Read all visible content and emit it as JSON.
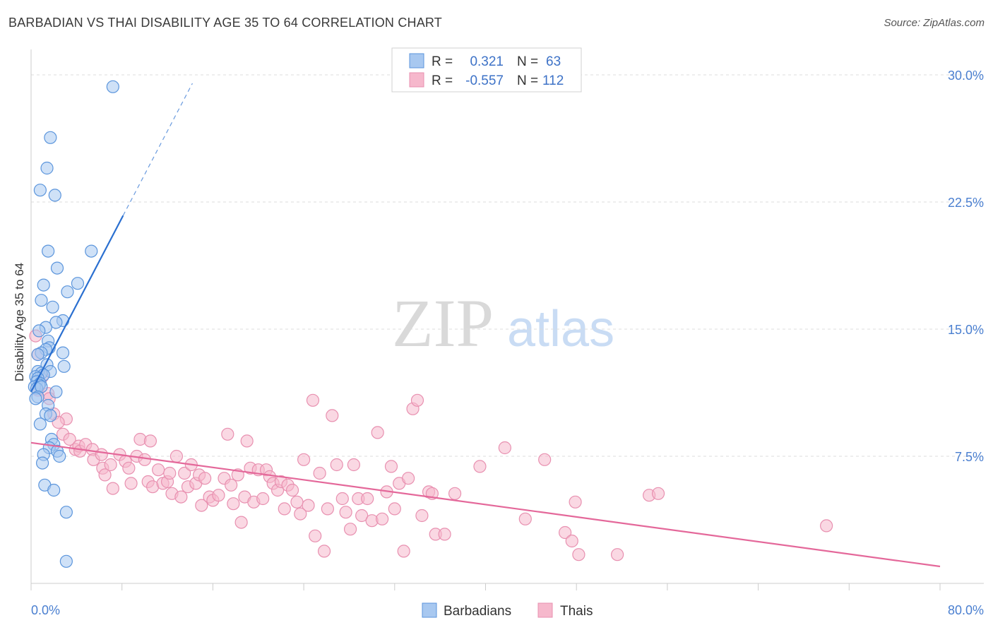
{
  "title": "BARBADIAN VS THAI DISABILITY AGE 35 TO 64 CORRELATION CHART",
  "source": "Source: ZipAtlas.com",
  "watermark": {
    "zip": "ZIP",
    "atlas": "atlas"
  },
  "colors": {
    "blue_fill": "#a8c8f0",
    "blue_stroke": "#5b95dc",
    "blue_line": "#2a6fd0",
    "pink_fill": "#f6b8cc",
    "pink_stroke": "#e890b0",
    "pink_line": "#e4689a",
    "tick_text": "#4a7fd0",
    "grid": "#dcdcdc"
  },
  "legend": {
    "r_label": "R =",
    "n_label": "N =",
    "rows": [
      {
        "series": "Barbadians",
        "r": "0.321",
        "n": "63"
      },
      {
        "series": "Thais",
        "r": "-0.557",
        "n": "112"
      }
    ]
  },
  "chart_data": {
    "type": "scatter",
    "title": "BARBADIAN VS THAI DISABILITY AGE 35 TO 64 CORRELATION CHART",
    "xlabel": "",
    "ylabel": "Disability Age 35 to 64",
    "xlim": [
      0,
      80
    ],
    "ylim": [
      0,
      31.5
    ],
    "x_tick_labels": [
      "0.0%",
      "80.0%"
    ],
    "y_ticks": [
      7.5,
      15.0,
      22.5,
      30.0
    ],
    "y_tick_labels": [
      "7.5%",
      "15.0%",
      "22.5%",
      "30.0%"
    ],
    "series": [
      {
        "name": "Barbadians",
        "r": 0.321,
        "n": 63,
        "trend": {
          "x0": 0,
          "y0": 11.3,
          "x1": 8.1,
          "y1": 21.7,
          "dash_to_x": 14.2,
          "dash_to_y": 29.5
        },
        "points": [
          [
            7.2,
            29.3
          ],
          [
            1.7,
            26.3
          ],
          [
            1.4,
            24.5
          ],
          [
            0.8,
            23.2
          ],
          [
            2.1,
            22.9
          ],
          [
            1.5,
            19.6
          ],
          [
            5.3,
            19.6
          ],
          [
            2.3,
            18.6
          ],
          [
            1.1,
            17.6
          ],
          [
            4.1,
            17.7
          ],
          [
            3.2,
            17.2
          ],
          [
            0.9,
            16.7
          ],
          [
            1.9,
            16.3
          ],
          [
            2.8,
            15.5
          ],
          [
            2.2,
            15.4
          ],
          [
            1.3,
            15.1
          ],
          [
            0.7,
            14.9
          ],
          [
            1.5,
            14.3
          ],
          [
            1.6,
            13.9
          ],
          [
            1.3,
            13.8
          ],
          [
            0.9,
            13.6
          ],
          [
            0.6,
            13.5
          ],
          [
            2.8,
            13.6
          ],
          [
            2.9,
            12.8
          ],
          [
            1.4,
            12.9
          ],
          [
            1.7,
            12.5
          ],
          [
            0.6,
            12.5
          ],
          [
            0.9,
            12.4
          ],
          [
            1.1,
            12.3
          ],
          [
            0.4,
            12.2
          ],
          [
            0.6,
            12.1
          ],
          [
            0.5,
            11.9
          ],
          [
            0.8,
            11.8
          ],
          [
            0.7,
            11.7
          ],
          [
            0.3,
            11.6
          ],
          [
            0.5,
            11.5
          ],
          [
            0.9,
            11.6
          ],
          [
            2.2,
            11.3
          ],
          [
            0.6,
            11.0
          ],
          [
            0.4,
            10.9
          ],
          [
            1.5,
            10.5
          ],
          [
            1.3,
            10.0
          ],
          [
            1.7,
            9.9
          ],
          [
            0.8,
            9.4
          ],
          [
            1.8,
            8.5
          ],
          [
            2.0,
            8.2
          ],
          [
            1.6,
            8.0
          ],
          [
            2.3,
            7.8
          ],
          [
            2.5,
            7.5
          ],
          [
            1.1,
            7.6
          ],
          [
            1.0,
            7.1
          ],
          [
            1.2,
            5.8
          ],
          [
            2.0,
            5.5
          ],
          [
            3.1,
            4.2
          ],
          [
            3.1,
            1.3
          ]
        ]
      },
      {
        "name": "Thais",
        "r": -0.557,
        "n": 112,
        "trend": {
          "x0": 0,
          "y0": 8.3,
          "x1": 80,
          "y1": 1.0
        },
        "points": [
          [
            0.4,
            14.6
          ],
          [
            0.6,
            13.5
          ],
          [
            1.0,
            12.2
          ],
          [
            0.6,
            11.4
          ],
          [
            1.5,
            11.2
          ],
          [
            1.6,
            10.9
          ],
          [
            2.0,
            10.0
          ],
          [
            3.1,
            9.7
          ],
          [
            2.4,
            9.5
          ],
          [
            2.8,
            8.8
          ],
          [
            3.4,
            8.5
          ],
          [
            3.9,
            7.9
          ],
          [
            4.2,
            8.1
          ],
          [
            4.3,
            7.8
          ],
          [
            4.8,
            8.2
          ],
          [
            5.4,
            7.9
          ],
          [
            5.5,
            7.3
          ],
          [
            6.2,
            7.6
          ],
          [
            6.3,
            6.8
          ],
          [
            6.5,
            6.4
          ],
          [
            7.0,
            7.0
          ],
          [
            7.2,
            5.6
          ],
          [
            7.8,
            7.6
          ],
          [
            8.3,
            7.2
          ],
          [
            8.6,
            6.8
          ],
          [
            8.8,
            5.9
          ],
          [
            9.3,
            7.5
          ],
          [
            9.6,
            8.5
          ],
          [
            10.0,
            7.3
          ],
          [
            10.3,
            6.0
          ],
          [
            10.5,
            8.4
          ],
          [
            10.7,
            5.7
          ],
          [
            11.2,
            6.7
          ],
          [
            11.6,
            5.9
          ],
          [
            12.0,
            6.0
          ],
          [
            12.2,
            6.5
          ],
          [
            12.4,
            5.3
          ],
          [
            12.8,
            7.5
          ],
          [
            13.2,
            5.1
          ],
          [
            13.5,
            6.5
          ],
          [
            13.8,
            5.7
          ],
          [
            14.1,
            7.0
          ],
          [
            14.5,
            5.9
          ],
          [
            14.8,
            6.4
          ],
          [
            15.0,
            4.6
          ],
          [
            15.3,
            6.2
          ],
          [
            15.7,
            5.1
          ],
          [
            16.0,
            4.9
          ],
          [
            16.5,
            5.2
          ],
          [
            17.0,
            6.2
          ],
          [
            17.3,
            8.8
          ],
          [
            17.6,
            5.8
          ],
          [
            17.8,
            4.7
          ],
          [
            18.2,
            6.4
          ],
          [
            18.5,
            3.6
          ],
          [
            18.8,
            5.1
          ],
          [
            19.0,
            8.4
          ],
          [
            19.3,
            6.8
          ],
          [
            19.6,
            4.8
          ],
          [
            20.0,
            6.7
          ],
          [
            20.4,
            5.0
          ],
          [
            20.7,
            6.7
          ],
          [
            21.0,
            6.3
          ],
          [
            21.3,
            5.9
          ],
          [
            21.7,
            5.5
          ],
          [
            22.0,
            6.0
          ],
          [
            22.3,
            4.4
          ],
          [
            22.6,
            5.8
          ],
          [
            23.0,
            5.5
          ],
          [
            23.4,
            4.8
          ],
          [
            23.7,
            4.1
          ],
          [
            24.0,
            7.3
          ],
          [
            24.4,
            4.6
          ],
          [
            24.8,
            10.8
          ],
          [
            25.0,
            2.8
          ],
          [
            25.4,
            6.5
          ],
          [
            25.8,
            1.9
          ],
          [
            26.1,
            4.4
          ],
          [
            26.5,
            9.9
          ],
          [
            26.9,
            7.0
          ],
          [
            27.4,
            5.0
          ],
          [
            27.7,
            4.2
          ],
          [
            28.1,
            3.2
          ],
          [
            28.4,
            7.0
          ],
          [
            28.8,
            5.0
          ],
          [
            29.1,
            4.0
          ],
          [
            29.6,
            5.0
          ],
          [
            30.0,
            3.7
          ],
          [
            30.5,
            8.9
          ],
          [
            30.9,
            3.8
          ],
          [
            31.3,
            5.4
          ],
          [
            31.7,
            6.9
          ],
          [
            32.0,
            4.4
          ],
          [
            32.4,
            5.9
          ],
          [
            32.8,
            1.9
          ],
          [
            33.2,
            6.2
          ],
          [
            33.6,
            10.3
          ],
          [
            34.0,
            10.8
          ],
          [
            34.4,
            4.0
          ],
          [
            35.0,
            5.4
          ],
          [
            35.3,
            5.3
          ],
          [
            35.6,
            2.9
          ],
          [
            36.4,
            2.9
          ],
          [
            37.3,
            5.3
          ],
          [
            39.5,
            6.9
          ],
          [
            41.7,
            8.0
          ],
          [
            43.5,
            3.8
          ],
          [
            45.2,
            7.3
          ],
          [
            47.0,
            3.0
          ],
          [
            47.6,
            2.5
          ],
          [
            47.9,
            4.8
          ],
          [
            48.2,
            1.7
          ],
          [
            51.6,
            1.7
          ],
          [
            54.4,
            5.2
          ],
          [
            55.2,
            5.3
          ],
          [
            70.0,
            3.4
          ]
        ]
      }
    ]
  },
  "bottom_legend": [
    "Barbadians",
    "Thais"
  ]
}
